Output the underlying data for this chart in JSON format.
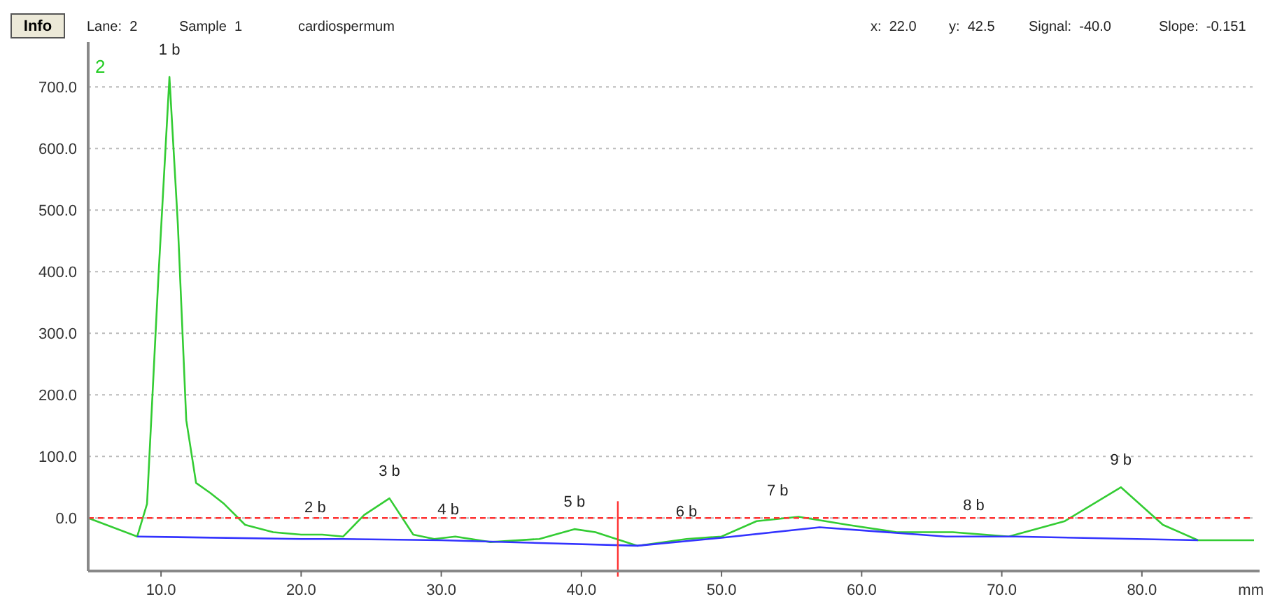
{
  "chart_data": {
    "type": "line",
    "xlabel": "mm",
    "xlim": [
      4.8,
      88
    ],
    "ylim": [
      -86,
      773
    ],
    "xticks": [
      {
        "value": 10,
        "label": "10.0"
      },
      {
        "value": 20,
        "label": "20.0"
      },
      {
        "value": 30,
        "label": "30.0"
      },
      {
        "value": 40,
        "label": "40.0"
      },
      {
        "value": 50,
        "label": "50.0"
      },
      {
        "value": 60,
        "label": "60.0"
      },
      {
        "value": 70,
        "label": "70.0"
      },
      {
        "value": 80,
        "label": "80.0"
      }
    ],
    "yticks": [
      {
        "value": 0,
        "label": "0.0"
      },
      {
        "value": 100,
        "label": "100.0"
      },
      {
        "value": 200,
        "label": "200.0"
      },
      {
        "value": 300,
        "label": "300.0"
      },
      {
        "value": 400,
        "label": "400.0"
      },
      {
        "value": 500,
        "label": "500.0"
      },
      {
        "value": 600,
        "label": "600.0"
      },
      {
        "value": 700,
        "label": "700.0"
      }
    ],
    "grid": "y",
    "marker": "none",
    "line_style": "solid",
    "series": [
      {
        "type": "line",
        "color": "#33cc33",
        "x": [
          4.8,
          8.3,
          9.0,
          9.8,
          10.6,
          11.2,
          11.8,
          12.5,
          13.5,
          14.5,
          16,
          18,
          20,
          21.5,
          23,
          24.5,
          26.3,
          28,
          29.5,
          31,
          33.5,
          37,
          39.5,
          41,
          44,
          47.5,
          50,
          52.5,
          55.5,
          59,
          62.5,
          66.5,
          70.5,
          74.5,
          78.5,
          81.5,
          84,
          88
        ],
        "values": [
          0,
          -30,
          23,
          386,
          716,
          477,
          159,
          57,
          41,
          23,
          -11,
          -23,
          -27,
          -27,
          -30,
          5,
          32,
          -27,
          -34,
          -30,
          -39,
          -34,
          -18,
          -23,
          -45,
          -34,
          -30,
          -5,
          2,
          -11,
          -23,
          -23,
          -30,
          -5,
          50,
          -11,
          -36,
          -36
        ]
      },
      {
        "type": "line",
        "color": "#3333ff",
        "x": [
          8.3,
          20,
          23,
          30,
          44,
          50,
          57,
          66,
          71,
          84
        ],
        "values": [
          -30,
          -34,
          -34,
          -36,
          -45,
          -32,
          -15,
          -30,
          -30,
          -36
        ]
      }
    ],
    "ref_lines": [
      {
        "axis": "y",
        "value": 0,
        "color": "#ff3333",
        "line_style": "dashed"
      },
      {
        "axis": "x",
        "value": 42.6,
        "color": "#ff3333",
        "line_style": "solid"
      }
    ],
    "annotations": [
      "Info",
      "Lane:  2",
      "Sample  1",
      "cardiospermum",
      "x:  22.0",
      "y:  42.5",
      "Signal:  -40.0",
      "Slope:  -0.151",
      "2",
      {
        "text": "1 b",
        "x": 10.6,
        "y": 716
      },
      {
        "text": "2 b",
        "x": 21,
        "y": -27
      },
      {
        "text": "3 b",
        "x": 26.3,
        "y": 32
      },
      {
        "text": "4 b",
        "x": 30.5,
        "y": -30
      },
      {
        "text": "5 b",
        "x": 39.5,
        "y": -18
      },
      {
        "text": "6 b",
        "x": 47.5,
        "y": -34
      },
      {
        "text": "7 b",
        "x": 54,
        "y": 0
      },
      {
        "text": "8 b",
        "x": 68,
        "y": -23
      },
      {
        "text": "9 b",
        "x": 78.5,
        "y": 50
      }
    ]
  }
}
